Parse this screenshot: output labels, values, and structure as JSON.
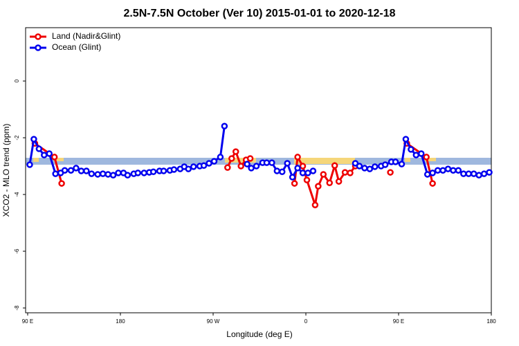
{
  "chart_data": {
    "type": "line",
    "title": "2.5N-7.5N October (Ver 10)   2015-01-01 to 2020-12-18",
    "xlabel": "Longitude (deg E)",
    "ylabel": "XCO2 - MLO trend (ppm)",
    "xlim": [
      88,
      540
    ],
    "ylim": [
      -8.17,
      1.88
    ],
    "xticks": [
      {
        "value": 90,
        "label": "90 E"
      },
      180,
      {
        "value": 270,
        "label": "90 W"
      },
      {
        "value": 360,
        "label": "0"
      },
      {
        "value": 450,
        "label": "90 E"
      },
      {
        "value": 540,
        "label": "180"
      }
    ],
    "yticks": [
      0,
      -2,
      -4,
      -6,
      -8
    ],
    "legend": "top-left",
    "series": [
      {
        "name": "Land (Nadir&Glint)",
        "color": "#ee0000",
        "x": [
          97,
          116,
          123,
          null,
          284,
          288,
          292,
          297,
          302,
          306,
          null,
          349,
          352,
          357,
          361,
          369,
          372,
          377,
          383,
          388,
          392,
          398,
          403,
          408,
          null,
          442,
          null,
          458,
          477,
          483
        ],
        "values": [
          -2.2,
          -2.68,
          -3.61,
          null,
          -3.05,
          -2.73,
          -2.49,
          -3.0,
          -2.78,
          -2.73,
          null,
          -3.61,
          -2.68,
          -3.0,
          -3.49,
          -4.37,
          -3.71,
          -3.29,
          -3.59,
          -2.98,
          -3.54,
          -3.22,
          -3.24,
          -3.0,
          null,
          -3.22,
          null,
          -2.2,
          -2.68,
          -3.61
        ]
      },
      {
        "name": "Ocean (Glint)",
        "color": "#0000ee",
        "x": [
          92,
          96,
          101,
          106,
          111,
          117,
          122,
          126,
          132,
          137,
          142,
          147,
          152,
          158,
          163,
          168,
          173,
          178,
          183,
          187,
          193,
          197,
          203,
          208,
          212,
          218,
          222,
          228,
          232,
          238,
          242,
          246,
          251,
          257,
          261,
          266,
          271,
          277,
          281,
          null,
          303,
          307,
          312,
          318,
          322,
          327,
          332,
          337,
          342,
          347,
          352,
          357,
          362,
          367,
          null,
          408,
          412,
          417,
          422,
          427,
          433,
          437,
          443,
          447,
          453,
          457,
          462,
          467,
          472,
          478,
          483,
          488,
          493,
          498,
          503,
          508,
          513,
          518,
          523,
          528,
          533,
          538
        ],
        "values": [
          -2.95,
          -2.05,
          -2.39,
          -2.61,
          -2.56,
          -3.27,
          -3.24,
          -3.15,
          -3.15,
          -3.07,
          -3.17,
          -3.17,
          -3.27,
          -3.29,
          -3.27,
          -3.29,
          -3.32,
          -3.24,
          -3.24,
          -3.32,
          -3.27,
          -3.24,
          -3.24,
          -3.22,
          -3.2,
          -3.17,
          -3.17,
          -3.15,
          -3.12,
          -3.1,
          -3.02,
          -3.1,
          -3.02,
          -3.0,
          -2.98,
          -2.9,
          -2.83,
          -2.68,
          -1.59,
          null,
          -2.93,
          -3.07,
          -3.0,
          -2.88,
          -2.88,
          -2.88,
          -3.17,
          -3.2,
          -2.9,
          -3.39,
          -3.07,
          -3.24,
          -3.24,
          -3.17,
          null,
          -2.9,
          -3.0,
          -3.07,
          -3.1,
          -3.02,
          -3.0,
          -2.95,
          -2.85,
          -2.85,
          -2.93,
          -2.05,
          -2.41,
          -2.61,
          -2.56,
          -3.29,
          -3.24,
          -3.15,
          -3.15,
          -3.1,
          -3.15,
          -3.15,
          -3.27,
          -3.27,
          -3.27,
          -3.32,
          -3.27,
          -3.22
        ]
      }
    ]
  }
}
